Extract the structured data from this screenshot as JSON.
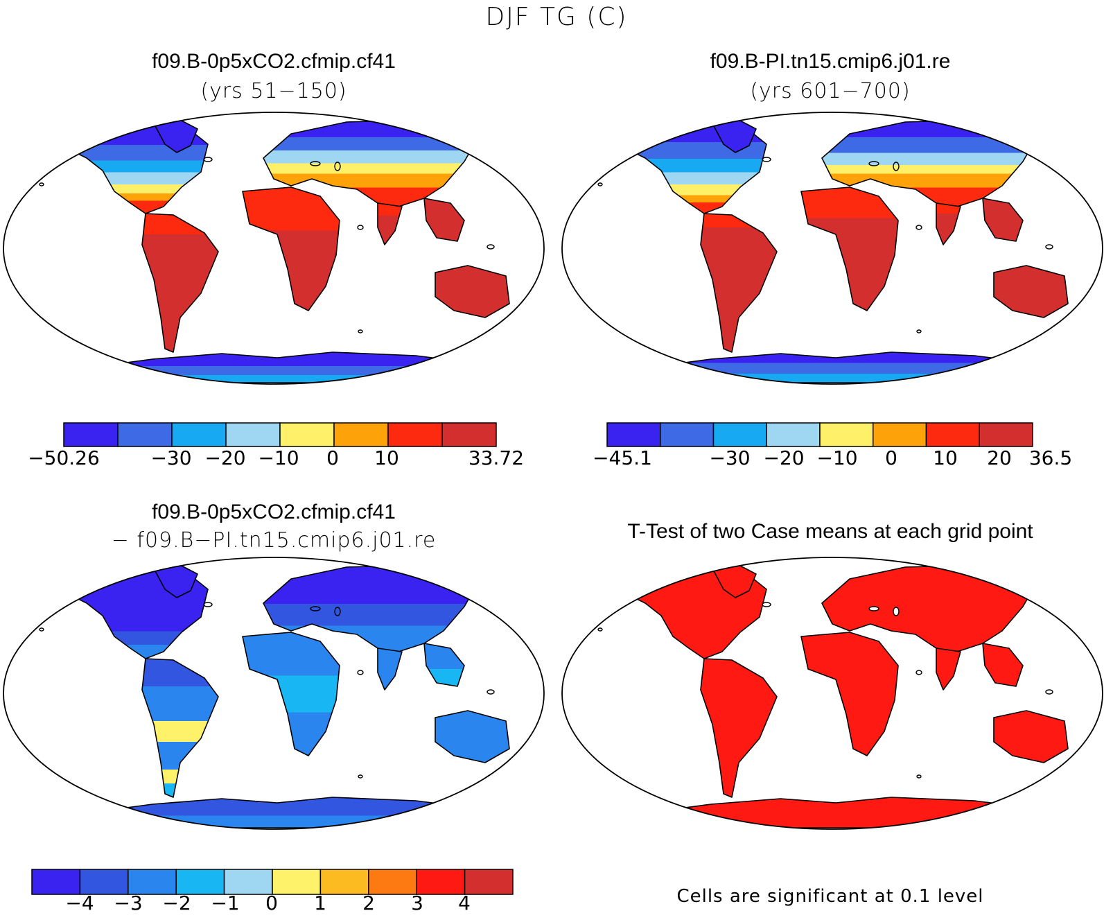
{
  "title": "DJF TG (C)",
  "colors": {
    "ocean": "#ffffff",
    "coast": "#000000",
    "abs_levels": [
      "#3a23f0",
      "#3f6ae6",
      "#17a9f2",
      "#9fd6f2",
      "#fff06a",
      "#fea20a",
      "#fd2a10",
      "#d42f2f"
    ],
    "diff_levels": [
      "#3a23f0",
      "#3256e0",
      "#2a86ee",
      "#18b6f2",
      "#9fd6f2",
      "#fff26b",
      "#fdbb22",
      "#fd7a12",
      "#fe1a12",
      "#d42f2f"
    ],
    "ttest": "#fe1a12"
  },
  "panels": {
    "top_left": {
      "title": "f09.B-0p5xCO2.cfmip.cf41",
      "subtitle": "(yrs 51−150)",
      "colorbar_labels": [
        "−50.26",
        "−30",
        "−20",
        "−10",
        "0",
        "10",
        "33.72"
      ]
    },
    "top_right": {
      "title": "f09.B-PI.tn15.cmip6.j01.re",
      "subtitle": "(yrs 601−700)",
      "colorbar_labels": [
        "−45.1",
        "−30",
        "−20",
        "−10",
        "0",
        "10",
        "20",
        "36.5"
      ]
    },
    "bottom_left": {
      "title": "f09.B-0p5xCO2.cfmip.cf41",
      "subtitle": "− f09.B−PI.tn15.cmip6.j01.re",
      "colorbar_labels": [
        "−4",
        "−3",
        "−2",
        "−1",
        "0",
        "1",
        "2",
        "3",
        "4"
      ]
    },
    "bottom_right": {
      "title": "T-Test of two Case means at each grid point",
      "note": "Cells are significant at 0.1 level"
    }
  }
}
